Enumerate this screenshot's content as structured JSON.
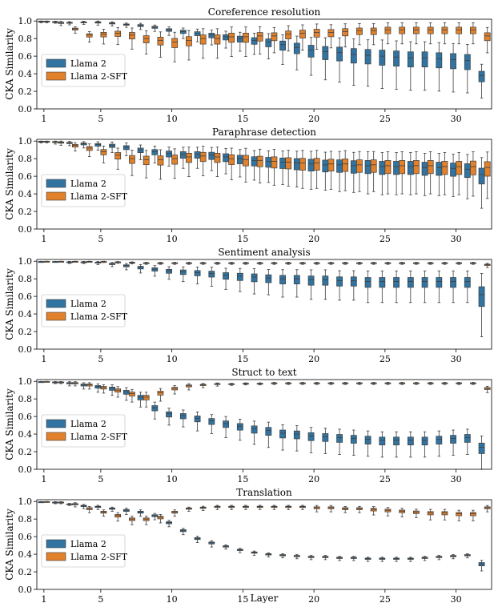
{
  "chart_data": {
    "type": "box",
    "xlabel": "Layer",
    "ylabel": "CKA Similarity",
    "x_ticks": [
      "1",
      "5",
      "10",
      "15",
      "20",
      "25",
      "30"
    ],
    "y_ticks": [
      "0.0",
      "0.2",
      "0.4",
      "0.6",
      "0.8",
      "1.0"
    ],
    "ylim": [
      0,
      1.02
    ],
    "layers": 32,
    "legend_position": "center-left",
    "colors": {
      "llama2": "#3274a1",
      "llama2sft": "#e1812c"
    },
    "panels": [
      {
        "title": "Coreference resolution",
        "series": [
          {
            "name": "Llama 2",
            "medians": [
              0.995,
              0.99,
              0.98,
              0.985,
              0.985,
              0.975,
              0.96,
              0.95,
              0.93,
              0.9,
              0.88,
              0.86,
              0.84,
              0.82,
              0.8,
              0.78,
              0.76,
              0.73,
              0.7,
              0.67,
              0.65,
              0.64,
              0.62,
              0.61,
              0.6,
              0.59,
              0.58,
              0.58,
              0.57,
              0.56,
              0.55,
              0.38
            ],
            "spreads": [
              0.01,
              0.01,
              0.015,
              0.015,
              0.02,
              0.02,
              0.02,
              0.03,
              0.03,
              0.04,
              0.05,
              0.06,
              0.07,
              0.08,
              0.09,
              0.1,
              0.12,
              0.14,
              0.16,
              0.18,
              0.2,
              0.21,
              0.22,
              0.22,
              0.23,
              0.23,
              0.23,
              0.23,
              0.23,
              0.23,
              0.23,
              0.16
            ]
          },
          {
            "name": "Llama 2-SFT",
            "medians": [
              0.995,
              0.98,
              0.91,
              0.84,
              0.85,
              0.86,
              0.84,
              0.8,
              0.78,
              0.76,
              0.78,
              0.8,
              0.8,
              0.82,
              0.82,
              0.83,
              0.83,
              0.85,
              0.86,
              0.87,
              0.87,
              0.88,
              0.89,
              0.89,
              0.9,
              0.9,
              0.9,
              0.9,
              0.9,
              0.9,
              0.9,
              0.83
            ],
            "spreads": [
              0.01,
              0.02,
              0.03,
              0.05,
              0.07,
              0.08,
              0.1,
              0.11,
              0.12,
              0.14,
              0.14,
              0.14,
              0.14,
              0.14,
              0.14,
              0.13,
              0.12,
              0.12,
              0.12,
              0.12,
              0.11,
              0.11,
              0.1,
              0.1,
              0.1,
              0.1,
              0.1,
              0.1,
              0.1,
              0.1,
              0.1,
              0.12
            ]
          }
        ]
      },
      {
        "title": "Paraphrase detection",
        "series": [
          {
            "name": "Llama 2",
            "medians": [
              0.995,
              0.99,
              0.98,
              0.97,
              0.96,
              0.95,
              0.93,
              0.9,
              0.88,
              0.86,
              0.85,
              0.85,
              0.84,
              0.82,
              0.8,
              0.78,
              0.77,
              0.76,
              0.75,
              0.74,
              0.73,
              0.73,
              0.72,
              0.72,
              0.71,
              0.71,
              0.71,
              0.7,
              0.7,
              0.69,
              0.68,
              0.62
            ],
            "spreads": [
              0.01,
              0.015,
              0.02,
              0.03,
              0.04,
              0.05,
              0.06,
              0.07,
              0.08,
              0.09,
              0.1,
              0.1,
              0.11,
              0.12,
              0.13,
              0.14,
              0.15,
              0.16,
              0.17,
              0.18,
              0.18,
              0.19,
              0.19,
              0.2,
              0.2,
              0.2,
              0.2,
              0.2,
              0.2,
              0.2,
              0.21,
              0.24
            ]
          },
          {
            "name": "Llama 2-SFT",
            "medians": [
              0.995,
              0.985,
              0.95,
              0.92,
              0.88,
              0.84,
              0.8,
              0.79,
              0.79,
              0.8,
              0.82,
              0.83,
              0.82,
              0.8,
              0.79,
              0.78,
              0.77,
              0.76,
              0.75,
              0.75,
              0.74,
              0.74,
              0.73,
              0.73,
              0.72,
              0.72,
              0.72,
              0.72,
              0.71,
              0.71,
              0.71,
              0.7
            ],
            "spreads": [
              0.01,
              0.02,
              0.04,
              0.06,
              0.08,
              0.1,
              0.12,
              0.13,
              0.14,
              0.14,
              0.14,
              0.14,
              0.14,
              0.15,
              0.16,
              0.16,
              0.17,
              0.17,
              0.18,
              0.18,
              0.18,
              0.19,
              0.19,
              0.19,
              0.2,
              0.2,
              0.2,
              0.2,
              0.2,
              0.2,
              0.21,
              0.22
            ]
          }
        ]
      },
      {
        "title": "Sentiment analysis",
        "series": [
          {
            "name": "Llama 2",
            "medians": [
              0.995,
              0.995,
              0.99,
              0.99,
              0.985,
              0.97,
              0.95,
              0.93,
              0.91,
              0.89,
              0.88,
              0.87,
              0.86,
              0.84,
              0.83,
              0.82,
              0.81,
              0.8,
              0.8,
              0.79,
              0.79,
              0.78,
              0.78,
              0.77,
              0.77,
              0.77,
              0.77,
              0.77,
              0.77,
              0.77,
              0.77,
              0.62
            ],
            "spreads": [
              0.005,
              0.005,
              0.01,
              0.01,
              0.015,
              0.02,
              0.03,
              0.04,
              0.05,
              0.06,
              0.07,
              0.08,
              0.09,
              0.1,
              0.11,
              0.12,
              0.12,
              0.13,
              0.13,
              0.14,
              0.14,
              0.14,
              0.14,
              0.15,
              0.15,
              0.15,
              0.15,
              0.15,
              0.15,
              0.15,
              0.15,
              0.3
            ]
          },
          {
            "name": "Llama 2-SFT",
            "medians": [
              0.998,
              0.998,
              0.997,
              0.996,
              0.995,
              0.99,
              0.985,
              0.98,
              0.98,
              0.98,
              0.98,
              0.98,
              0.98,
              0.98,
              0.98,
              0.98,
              0.98,
              0.98,
              0.98,
              0.98,
              0.98,
              0.98,
              0.98,
              0.98,
              0.98,
              0.98,
              0.98,
              0.98,
              0.98,
              0.98,
              0.98,
              0.96
            ],
            "spreads": [
              0.003,
              0.003,
              0.004,
              0.005,
              0.006,
              0.008,
              0.01,
              0.01,
              0.01,
              0.01,
              0.01,
              0.01,
              0.01,
              0.01,
              0.01,
              0.01,
              0.01,
              0.01,
              0.01,
              0.01,
              0.01,
              0.01,
              0.01,
              0.01,
              0.01,
              0.01,
              0.01,
              0.01,
              0.01,
              0.01,
              0.01,
              0.02
            ]
          }
        ]
      },
      {
        "title": "Struct to text",
        "series": [
          {
            "name": "Llama 2",
            "medians": [
              0.995,
              0.99,
              0.98,
              0.96,
              0.94,
              0.92,
              0.88,
              0.82,
              0.7,
              0.63,
              0.61,
              0.58,
              0.55,
              0.52,
              0.49,
              0.46,
              0.44,
              0.41,
              0.4,
              0.38,
              0.37,
              0.36,
              0.35,
              0.34,
              0.33,
              0.33,
              0.33,
              0.33,
              0.34,
              0.35,
              0.36,
              0.25
            ],
            "spreads": [
              0.005,
              0.01,
              0.02,
              0.03,
              0.04,
              0.05,
              0.06,
              0.07,
              0.08,
              0.08,
              0.08,
              0.09,
              0.09,
              0.1,
              0.1,
              0.11,
              0.12,
              0.12,
              0.12,
              0.12,
              0.12,
              0.12,
              0.12,
              0.12,
              0.12,
              0.12,
              0.12,
              0.12,
              0.12,
              0.12,
              0.12,
              0.16
            ]
          },
          {
            "name": "Llama 2-SFT",
            "medians": [
              0.998,
              0.99,
              0.98,
              0.96,
              0.93,
              0.9,
              0.86,
              0.82,
              0.87,
              0.92,
              0.95,
              0.96,
              0.97,
              0.97,
              0.975,
              0.975,
              0.98,
              0.98,
              0.98,
              0.98,
              0.98,
              0.98,
              0.98,
              0.98,
              0.98,
              0.98,
              0.98,
              0.98,
              0.98,
              0.98,
              0.98,
              0.92
            ],
            "spreads": [
              0.003,
              0.01,
              0.02,
              0.03,
              0.04,
              0.05,
              0.06,
              0.07,
              0.06,
              0.04,
              0.03,
              0.02,
              0.015,
              0.01,
              0.01,
              0.01,
              0.01,
              0.01,
              0.01,
              0.01,
              0.01,
              0.01,
              0.01,
              0.01,
              0.01,
              0.01,
              0.01,
              0.01,
              0.01,
              0.01,
              0.01,
              0.03
            ]
          }
        ]
      },
      {
        "title": "Translation",
        "series": [
          {
            "name": "Llama 2",
            "medians": [
              0.995,
              0.99,
              0.97,
              0.95,
              0.94,
              0.92,
              0.9,
              0.88,
              0.84,
              0.76,
              0.67,
              0.58,
              0.53,
              0.49,
              0.45,
              0.42,
              0.4,
              0.39,
              0.38,
              0.37,
              0.37,
              0.36,
              0.36,
              0.35,
              0.35,
              0.35,
              0.35,
              0.36,
              0.37,
              0.38,
              0.39,
              0.29
            ],
            "spreads": [
              0.005,
              0.01,
              0.01,
              0.02,
              0.02,
              0.02,
              0.03,
              0.03,
              0.03,
              0.03,
              0.03,
              0.03,
              0.03,
              0.02,
              0.02,
              0.02,
              0.02,
              0.02,
              0.02,
              0.02,
              0.02,
              0.02,
              0.02,
              0.02,
              0.02,
              0.02,
              0.02,
              0.02,
              0.02,
              0.02,
              0.02,
              0.05
            ]
          },
          {
            "name": "Llama 2-SFT",
            "medians": [
              0.998,
              0.99,
              0.97,
              0.92,
              0.88,
              0.84,
              0.8,
              0.8,
              0.82,
              0.88,
              0.92,
              0.93,
              0.94,
              0.94,
              0.94,
              0.94,
              0.94,
              0.94,
              0.94,
              0.93,
              0.93,
              0.92,
              0.92,
              0.91,
              0.9,
              0.89,
              0.88,
              0.87,
              0.87,
              0.86,
              0.86,
              0.93
            ],
            "spreads": [
              0.003,
              0.01,
              0.02,
              0.03,
              0.03,
              0.04,
              0.04,
              0.04,
              0.04,
              0.03,
              0.02,
              0.02,
              0.02,
              0.02,
              0.02,
              0.02,
              0.02,
              0.02,
              0.02,
              0.03,
              0.03,
              0.03,
              0.03,
              0.04,
              0.04,
              0.04,
              0.04,
              0.05,
              0.05,
              0.05,
              0.05,
              0.03
            ]
          }
        ]
      }
    ]
  }
}
